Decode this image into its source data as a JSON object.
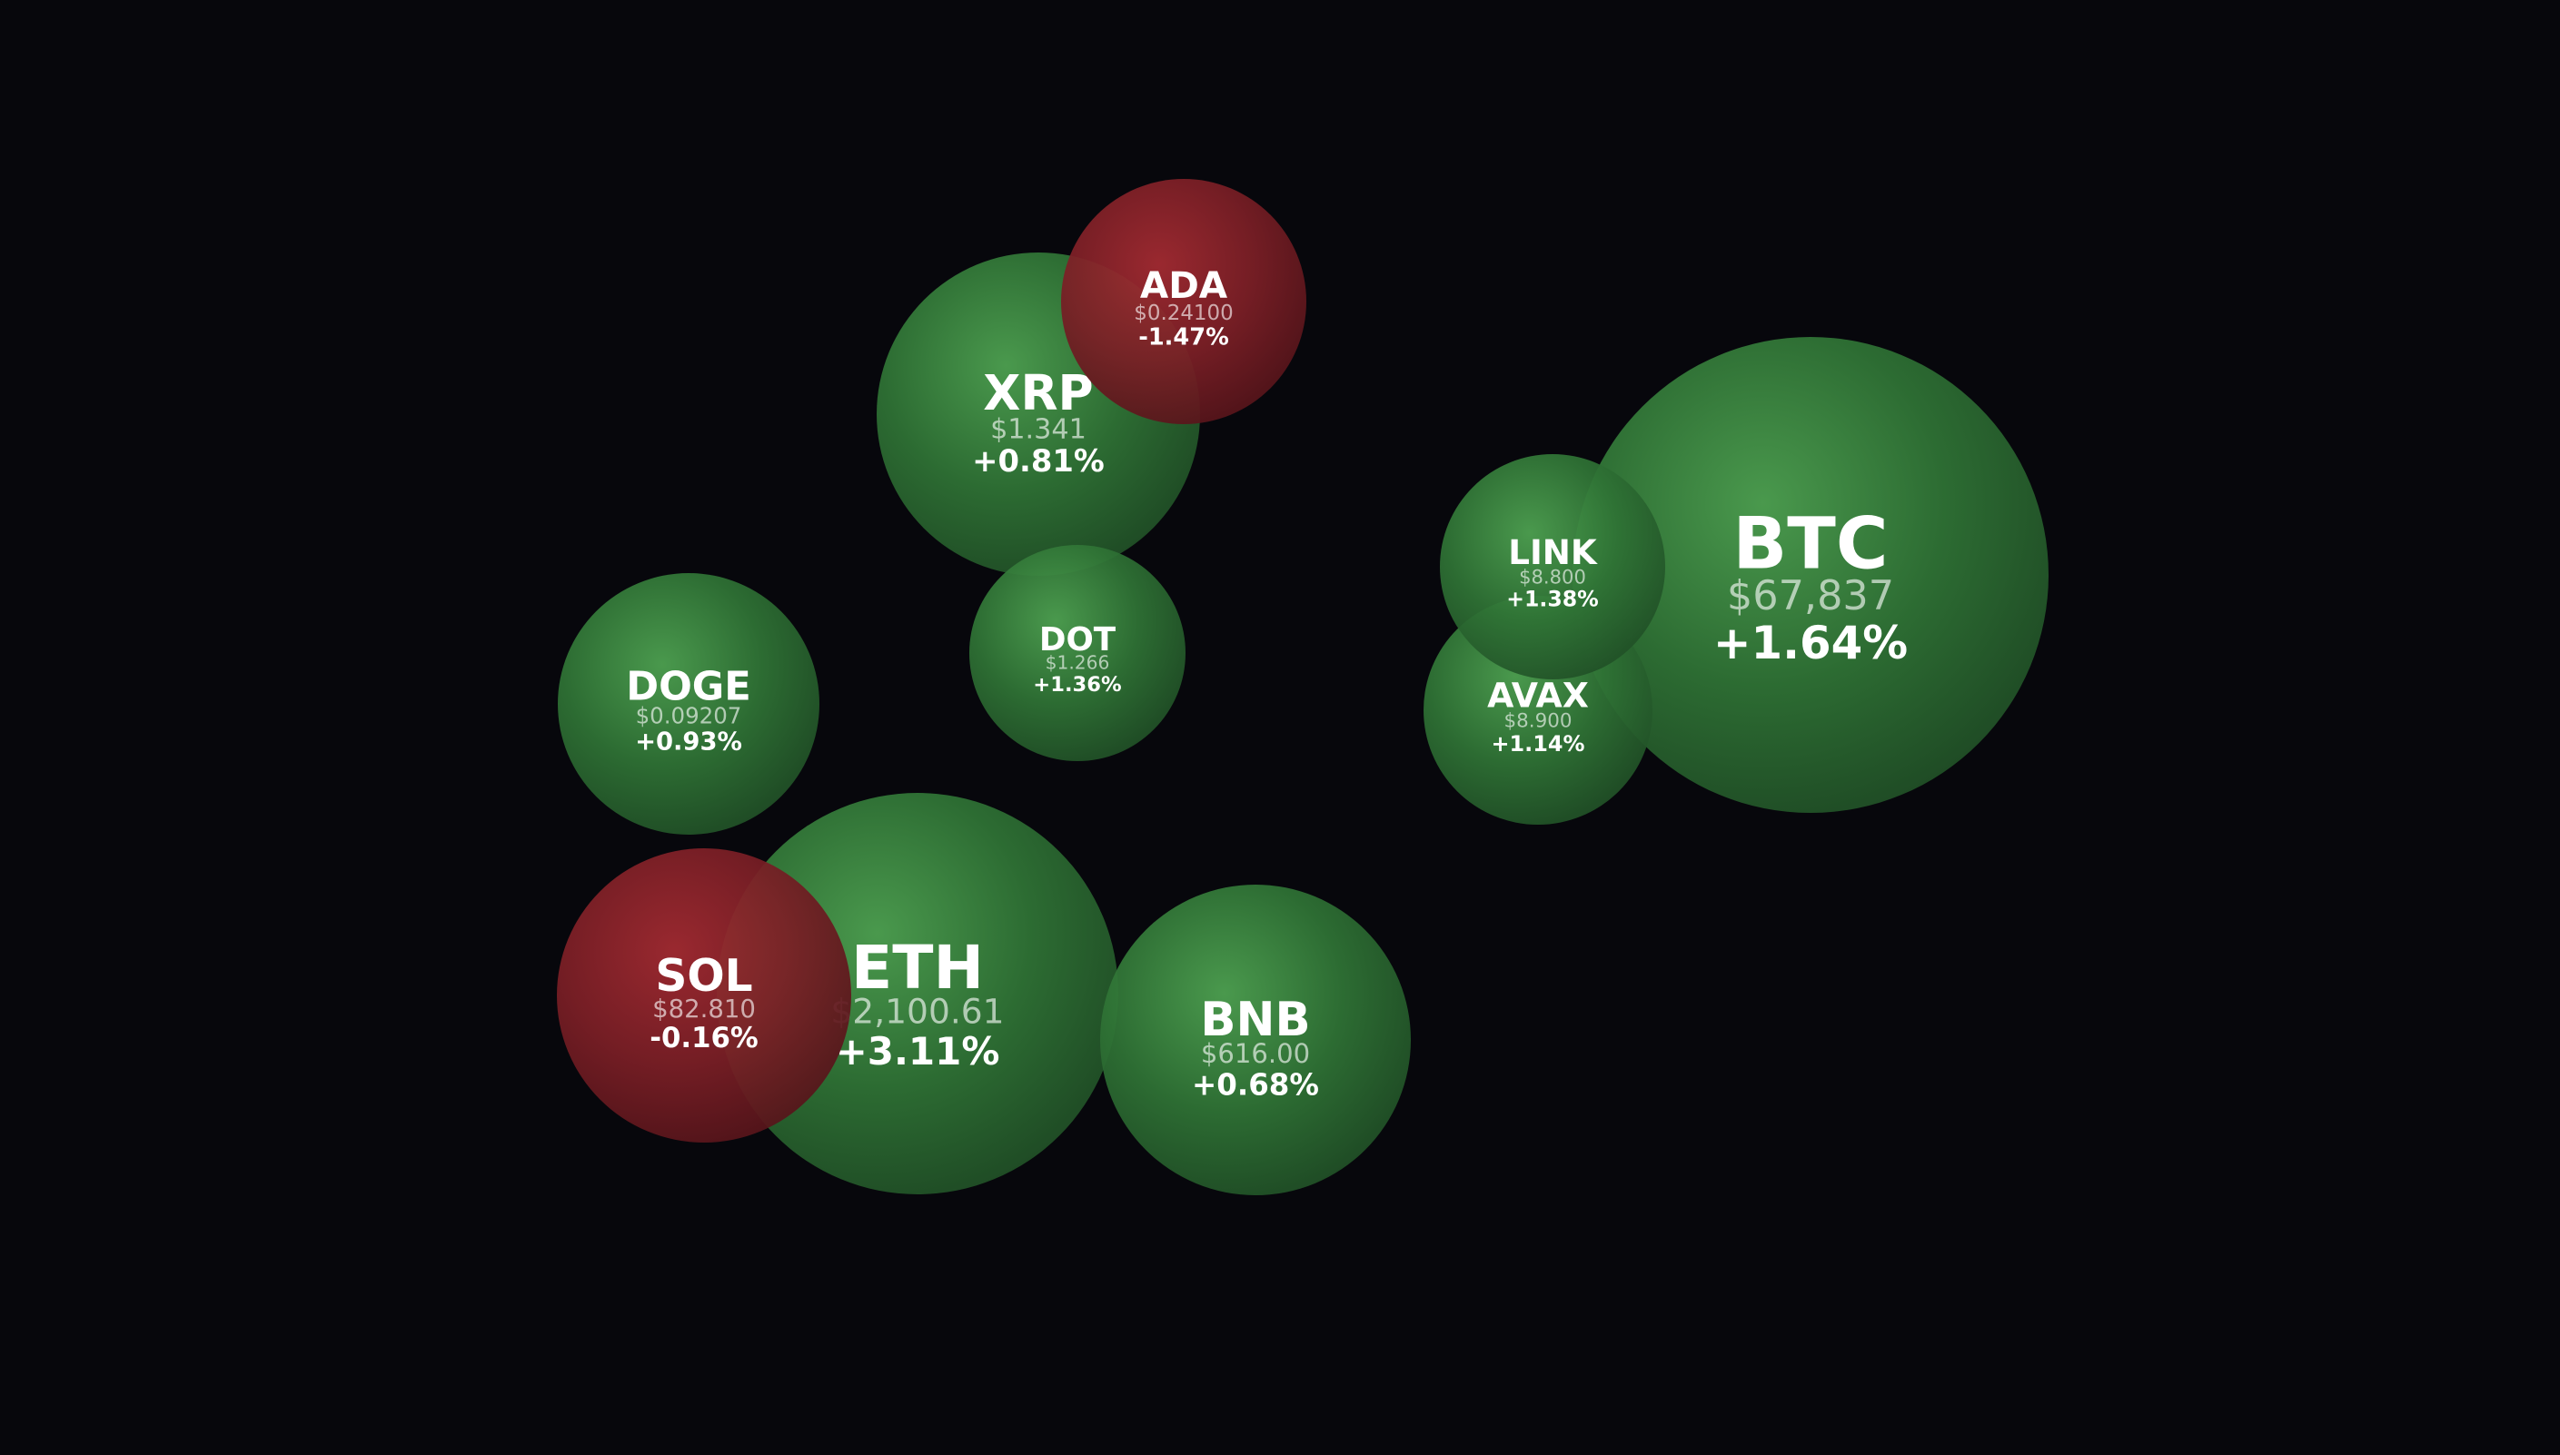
{
  "bubbles": [
    {
      "symbol": "BTC",
      "price": "$67,837",
      "change": "+1.64%"
    },
    {
      "symbol": "AVAX",
      "price": "$8.900",
      "change": "+1.14%"
    },
    {
      "symbol": "LINK",
      "price": "$8.800",
      "change": "+1.38%"
    },
    {
      "symbol": "XRP",
      "price": "$1.341",
      "change": "+0.81%"
    },
    {
      "symbol": "ADA",
      "price": "$0.24100",
      "change": "-1.47%"
    },
    {
      "symbol": "DOT",
      "price": "$1.266",
      "change": "+1.36%"
    },
    {
      "symbol": "DOGE",
      "price": "$0.09207",
      "change": "+0.93%"
    },
    {
      "symbol": "ETH",
      "price": "$2,100.61",
      "change": "+3.11%"
    },
    {
      "symbol": "SOL",
      "price": "$82.810",
      "change": "-0.16%"
    },
    {
      "symbol": "BNB",
      "price": "$616.00",
      "change": "+0.68%"
    }
  ]
}
